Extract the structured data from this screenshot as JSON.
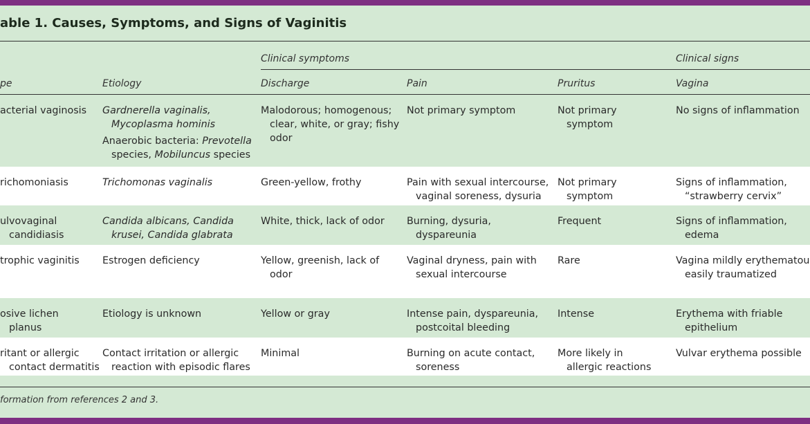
{
  "colors": {
    "band": "#7e2f82",
    "background": "#d4e9d4",
    "alt_row": "#ffffff"
  },
  "title": "able 1. Causes, Symptoms, and Signs of Vaginitis",
  "group_headers": {
    "symptoms": "Clinical symptoms",
    "signs": "Clinical signs"
  },
  "columns": [
    "pe",
    "Etiology",
    "Discharge",
    "Pain",
    "Pruritus",
    "Vagina"
  ],
  "rows": [
    {
      "cells": [
        [
          [
            [
              [
                "acterial vaginosis",
                0
              ]
            ]
          ]
        ],
        [
          [
            [
              [
                "Gardnerella vaginalis,",
                1
              ]
            ],
            [
              [
                "Mycoplasma hominis",
                1
              ]
            ]
          ],
          [
            [
              [
                "Anaerobic bacteria: ",
                0
              ],
              [
                "Prevotella",
                1
              ]
            ],
            [
              [
                "species, ",
                0
              ],
              [
                "Mobiluncus",
                1
              ],
              [
                " species",
                0
              ]
            ]
          ]
        ],
        [
          [
            [
              [
                "Malodorous; homogenous;",
                0
              ]
            ],
            [
              [
                "clear, white, or gray; fishy",
                0
              ]
            ],
            [
              [
                "odor",
                0
              ]
            ]
          ]
        ],
        [
          [
            [
              [
                "Not primary symptom",
                0
              ]
            ]
          ]
        ],
        [
          [
            [
              [
                "Not primary",
                0
              ]
            ],
            [
              [
                "symptom",
                0
              ]
            ]
          ]
        ],
        [
          [
            [
              [
                "No signs of inflammation",
                0
              ]
            ]
          ]
        ]
      ]
    },
    {
      "cells": [
        [
          [
            [
              [
                "richomoniasis",
                0
              ]
            ]
          ]
        ],
        [
          [
            [
              [
                "Trichomonas vaginalis",
                1
              ]
            ]
          ]
        ],
        [
          [
            [
              [
                "Green-yellow, frothy",
                0
              ]
            ]
          ]
        ],
        [
          [
            [
              [
                "Pain with sexual intercourse,",
                0
              ]
            ],
            [
              [
                "vaginal soreness, dysuria",
                0
              ]
            ]
          ]
        ],
        [
          [
            [
              [
                "Not primary",
                0
              ]
            ],
            [
              [
                "symptom",
                0
              ]
            ]
          ]
        ],
        [
          [
            [
              [
                "Signs of inflammation,",
                0
              ]
            ],
            [
              [
                "“strawberry cervix”",
                0
              ]
            ]
          ]
        ]
      ]
    },
    {
      "cells": [
        [
          [
            [
              [
                "ulvovaginal",
                0
              ]
            ],
            [
              [
                "candidiasis",
                0
              ]
            ]
          ]
        ],
        [
          [
            [
              [
                "Candida albicans, Candida",
                1
              ]
            ],
            [
              [
                "krusei, Candida glabrata",
                1
              ]
            ]
          ]
        ],
        [
          [
            [
              [
                "White, thick, lack of odor",
                0
              ]
            ]
          ]
        ],
        [
          [
            [
              [
                "Burning, dysuria,",
                0
              ]
            ],
            [
              [
                "dyspareunia",
                0
              ]
            ]
          ]
        ],
        [
          [
            [
              [
                "Frequent",
                0
              ]
            ]
          ]
        ],
        [
          [
            [
              [
                "Signs of inflammation,",
                0
              ]
            ],
            [
              [
                "edema",
                0
              ]
            ]
          ]
        ]
      ]
    },
    {
      "cells": [
        [
          [
            [
              [
                "trophic vaginitis",
                0
              ]
            ]
          ]
        ],
        [
          [
            [
              [
                "Estrogen deficiency",
                0
              ]
            ]
          ]
        ],
        [
          [
            [
              [
                "Yellow, greenish, lack of",
                0
              ]
            ],
            [
              [
                "odor",
                0
              ]
            ]
          ]
        ],
        [
          [
            [
              [
                "Vaginal dryness, pain with",
                0
              ]
            ],
            [
              [
                "sexual intercourse",
                0
              ]
            ]
          ]
        ],
        [
          [
            [
              [
                "Rare",
                0
              ]
            ]
          ]
        ],
        [
          [
            [
              [
                "Vagina mildly erythematous,",
                0
              ]
            ],
            [
              [
                "easily traumatized",
                0
              ]
            ]
          ]
        ]
      ]
    },
    {
      "cells": [
        [
          [
            [
              [
                "osive lichen",
                0
              ]
            ],
            [
              [
                "planus",
                0
              ]
            ]
          ]
        ],
        [
          [
            [
              [
                "Etiology is unknown",
                0
              ]
            ]
          ]
        ],
        [
          [
            [
              [
                "Yellow or gray",
                0
              ]
            ]
          ]
        ],
        [
          [
            [
              [
                "Intense pain, dyspareunia,",
                0
              ]
            ],
            [
              [
                "postcoital bleeding",
                0
              ]
            ]
          ]
        ],
        [
          [
            [
              [
                "Intense",
                0
              ]
            ]
          ]
        ],
        [
          [
            [
              [
                "Erythema with friable",
                0
              ]
            ],
            [
              [
                "epithelium",
                0
              ]
            ]
          ]
        ]
      ]
    },
    {
      "cells": [
        [
          [
            [
              [
                "ritant or allergic",
                0
              ]
            ],
            [
              [
                "contact dermatitis",
                0
              ]
            ]
          ]
        ],
        [
          [
            [
              [
                "Contact irritation or allergic",
                0
              ]
            ],
            [
              [
                "reaction with episodic flares",
                0
              ]
            ]
          ]
        ],
        [
          [
            [
              [
                "Minimal",
                0
              ]
            ]
          ]
        ],
        [
          [
            [
              [
                "Burning on acute contact,",
                0
              ]
            ],
            [
              [
                "soreness",
                0
              ]
            ]
          ]
        ],
        [
          [
            [
              [
                "More likely in",
                0
              ]
            ],
            [
              [
                "allergic reactions",
                0
              ]
            ]
          ]
        ],
        [
          [
            [
              [
                "Vulvar erythema possible",
                0
              ]
            ]
          ]
        ]
      ]
    }
  ],
  "footnote": "formation from references 2 and 3."
}
